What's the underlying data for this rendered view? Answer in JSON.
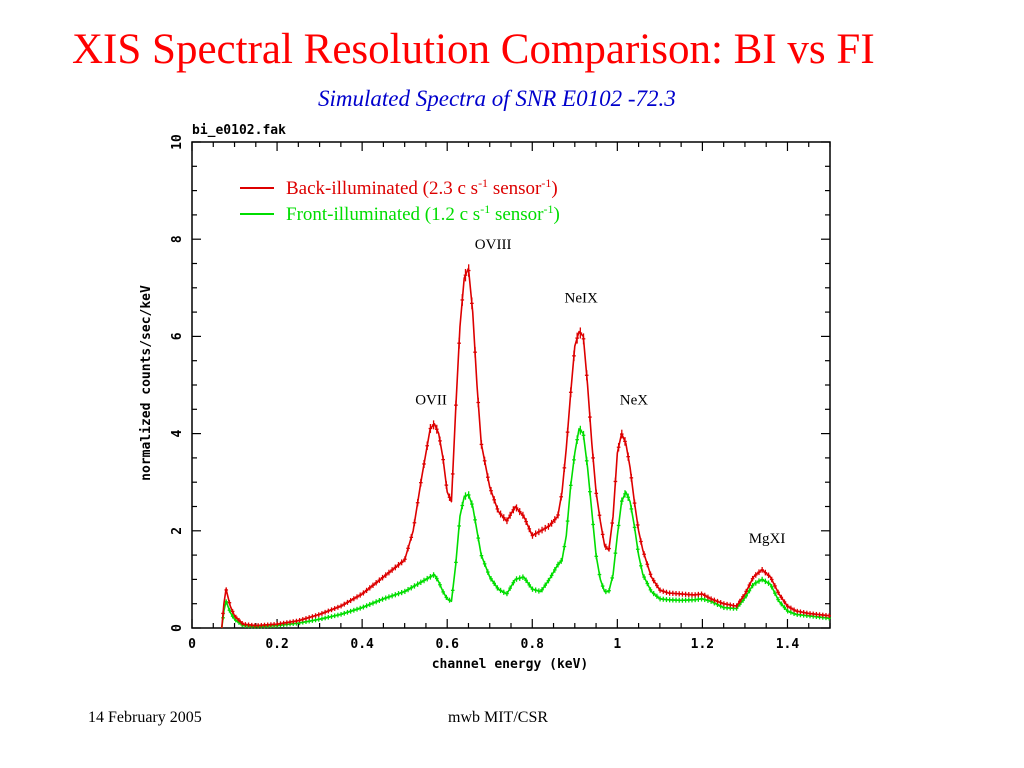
{
  "slide": {
    "title": "XIS Spectral Resolution Comparison: BI vs FI",
    "subtitle": "Simulated Spectra of SNR E0102 -72.3",
    "footer_date": "14 February 2005",
    "footer_author": "mwb MIT/CSR"
  },
  "chart_data": {
    "type": "scatter",
    "title": "bi_e0102.fak",
    "xlabel": "channel energy (keV)",
    "ylabel": "normalized counts/sec/keV",
    "xlim": [
      0,
      1.5
    ],
    "ylim": [
      0,
      10
    ],
    "x_ticks": [
      "0",
      "0.2",
      "0.4",
      "0.6",
      "0.8",
      "1",
      "1.2",
      "1.4"
    ],
    "y_ticks": [
      "0",
      "2",
      "4",
      "6",
      "8",
      "10"
    ],
    "grid": false,
    "legend": {
      "placement": "top-left",
      "entries": [
        {
          "text": "Back-illuminated (2.3 c s",
          "sup1": "-1",
          "mid": " sensor",
          "sup2": "-1",
          "close": ")",
          "color": "#dd0000"
        },
        {
          "text": "Front-illuminated (1.2 c s",
          "sup1": "-1",
          "mid": " sensor",
          "sup2": "-1",
          "close": ")",
          "color": "#00dd00"
        }
      ]
    },
    "annotations": [
      {
        "text": "OVIII",
        "x": 0.708,
        "y": 7.8
      },
      {
        "text": "NeIX",
        "x": 0.915,
        "y": 6.7
      },
      {
        "text": "OVII",
        "x": 0.562,
        "y": 4.6
      },
      {
        "text": "NeX",
        "x": 1.039,
        "y": 4.6
      },
      {
        "text": "MgXI",
        "x": 1.352,
        "y": 1.75
      }
    ],
    "series": [
      {
        "color": "#dd0000",
        "x": [
          0.07,
          0.075,
          0.08,
          0.09,
          0.1,
          0.12,
          0.15,
          0.2,
          0.25,
          0.3,
          0.35,
          0.4,
          0.45,
          0.5,
          0.52,
          0.54,
          0.56,
          0.57,
          0.58,
          0.59,
          0.6,
          0.61,
          0.62,
          0.63,
          0.64,
          0.65,
          0.66,
          0.67,
          0.68,
          0.7,
          0.72,
          0.74,
          0.76,
          0.78,
          0.8,
          0.82,
          0.84,
          0.86,
          0.87,
          0.88,
          0.89,
          0.9,
          0.91,
          0.92,
          0.93,
          0.94,
          0.95,
          0.96,
          0.97,
          0.98,
          0.99,
          1.0,
          1.01,
          1.02,
          1.03,
          1.04,
          1.05,
          1.06,
          1.08,
          1.1,
          1.12,
          1.15,
          1.18,
          1.2,
          1.22,
          1.25,
          1.28,
          1.3,
          1.32,
          1.34,
          1.36,
          1.38,
          1.4,
          1.42,
          1.45,
          1.5
        ],
        "y": [
          0.0,
          0.5,
          0.8,
          0.45,
          0.25,
          0.08,
          0.05,
          0.08,
          0.15,
          0.28,
          0.45,
          0.7,
          1.05,
          1.4,
          2.0,
          3.1,
          4.1,
          4.2,
          4.0,
          3.5,
          2.8,
          2.6,
          4.5,
          6.2,
          7.2,
          7.4,
          6.5,
          5.0,
          3.8,
          2.9,
          2.4,
          2.2,
          2.5,
          2.3,
          1.9,
          2.0,
          2.1,
          2.3,
          2.8,
          3.7,
          4.8,
          5.8,
          6.1,
          6.0,
          5.0,
          3.8,
          2.8,
          2.2,
          1.7,
          1.6,
          2.3,
          3.6,
          4.0,
          3.8,
          3.3,
          2.6,
          2.0,
          1.6,
          1.05,
          0.78,
          0.72,
          0.7,
          0.68,
          0.7,
          0.6,
          0.5,
          0.45,
          0.7,
          1.05,
          1.2,
          1.05,
          0.7,
          0.45,
          0.35,
          0.3,
          0.25
        ]
      },
      {
        "color": "#00dd00",
        "x": [
          0.07,
          0.075,
          0.08,
          0.09,
          0.1,
          0.12,
          0.15,
          0.2,
          0.25,
          0.3,
          0.35,
          0.4,
          0.45,
          0.5,
          0.52,
          0.54,
          0.56,
          0.57,
          0.58,
          0.59,
          0.6,
          0.61,
          0.62,
          0.63,
          0.64,
          0.65,
          0.66,
          0.67,
          0.68,
          0.7,
          0.72,
          0.74,
          0.76,
          0.78,
          0.8,
          0.82,
          0.84,
          0.86,
          0.87,
          0.88,
          0.89,
          0.9,
          0.91,
          0.92,
          0.93,
          0.94,
          0.95,
          0.96,
          0.97,
          0.98,
          0.99,
          1.0,
          1.01,
          1.02,
          1.03,
          1.04,
          1.05,
          1.06,
          1.08,
          1.1,
          1.12,
          1.15,
          1.18,
          1.2,
          1.22,
          1.25,
          1.28,
          1.3,
          1.32,
          1.34,
          1.36,
          1.38,
          1.4,
          1.42,
          1.45,
          1.5
        ],
        "y": [
          0.0,
          0.35,
          0.55,
          0.32,
          0.18,
          0.05,
          0.03,
          0.05,
          0.1,
          0.18,
          0.28,
          0.42,
          0.6,
          0.75,
          0.85,
          0.95,
          1.05,
          1.1,
          0.95,
          0.75,
          0.6,
          0.55,
          1.3,
          2.3,
          2.7,
          2.75,
          2.5,
          2.0,
          1.5,
          1.05,
          0.8,
          0.7,
          1.0,
          1.05,
          0.8,
          0.75,
          1.0,
          1.3,
          1.4,
          1.9,
          2.9,
          3.6,
          4.1,
          4.0,
          3.3,
          2.4,
          1.5,
          1.0,
          0.75,
          0.75,
          1.1,
          1.9,
          2.6,
          2.8,
          2.6,
          2.1,
          1.5,
          1.1,
          0.75,
          0.6,
          0.58,
          0.57,
          0.58,
          0.6,
          0.55,
          0.42,
          0.4,
          0.62,
          0.9,
          1.0,
          0.9,
          0.55,
          0.35,
          0.28,
          0.25,
          0.2
        ]
      }
    ]
  }
}
